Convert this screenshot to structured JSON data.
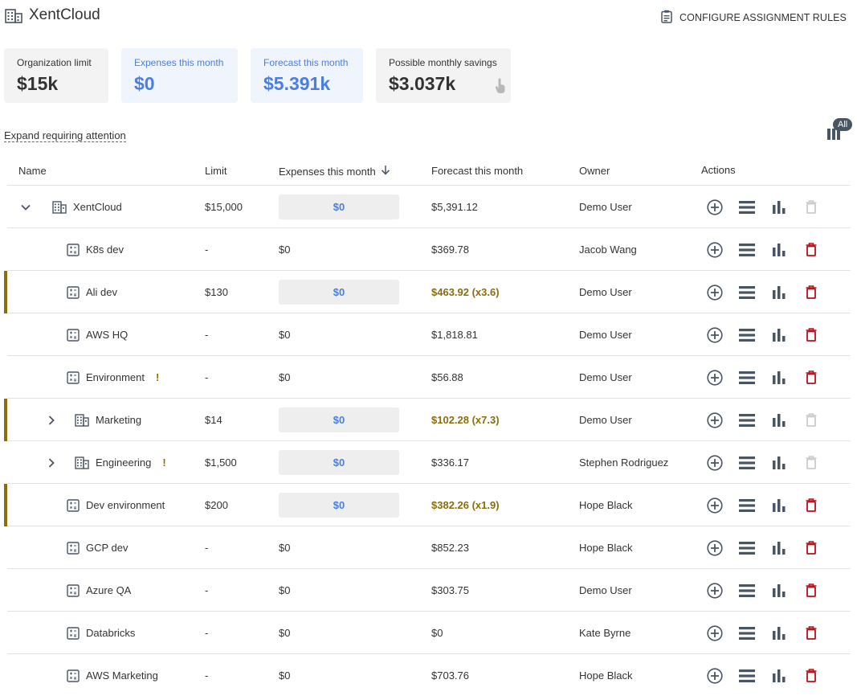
{
  "header": {
    "title": "XentCloud",
    "configure_label": "CONFIGURE ASSIGNMENT RULES"
  },
  "cards": [
    {
      "label": "Organization limit",
      "value": "$15k",
      "style": "grey"
    },
    {
      "label": "Expenses this month",
      "value": "$0",
      "style": "blue"
    },
    {
      "label": "Forecast this month",
      "value": "$5.391k",
      "style": "blue"
    },
    {
      "label": "Possible monthly savings",
      "value": "$3.037k",
      "style": "grey"
    }
  ],
  "expand_link": "Expand requiring attention",
  "column_badge": "All",
  "table": {
    "headers": {
      "name": "Name",
      "limit": "Limit",
      "expenses": "Expenses this month",
      "forecast": "Forecast this month",
      "owner": "Owner",
      "actions": "Actions"
    },
    "rows": [
      {
        "name": "XentCloud",
        "limit": "$15,000",
        "expenses": "$0",
        "forecast": "$5,391.12",
        "owner": "Demo User",
        "type": "org",
        "chevron": "chevron-down",
        "marked": false,
        "exceeded": false,
        "expense_box": true,
        "warn": false,
        "delete_enabled": false
      },
      {
        "name": "K8s dev",
        "limit": "-",
        "expenses": "$0",
        "forecast": "$369.78",
        "owner": "Jacob Wang",
        "type": "pool",
        "chevron": "",
        "marked": false,
        "exceeded": false,
        "expense_box": false,
        "warn": false,
        "delete_enabled": true
      },
      {
        "name": "Ali dev",
        "limit": "$130",
        "expenses": "$0",
        "forecast": "$463.92 (x3.6)",
        "owner": "Demo User",
        "type": "pool",
        "chevron": "",
        "marked": true,
        "exceeded": true,
        "expense_box": true,
        "warn": false,
        "delete_enabled": true
      },
      {
        "name": "AWS HQ",
        "limit": "-",
        "expenses": "$0",
        "forecast": "$1,818.81",
        "owner": "Demo User",
        "type": "pool",
        "chevron": "",
        "marked": false,
        "exceeded": false,
        "expense_box": false,
        "warn": false,
        "delete_enabled": true
      },
      {
        "name": "Environment",
        "limit": "-",
        "expenses": "$0",
        "forecast": "$56.88",
        "owner": "Demo User",
        "type": "pool",
        "chevron": "",
        "marked": false,
        "exceeded": false,
        "expense_box": false,
        "warn": true,
        "delete_enabled": true
      },
      {
        "name": "Marketing",
        "limit": "$14",
        "expenses": "$0",
        "forecast": "$102.28 (x7.3)",
        "owner": "Demo User",
        "type": "org",
        "chevron": "chevron-right",
        "marked": true,
        "exceeded": true,
        "expense_box": true,
        "warn": false,
        "delete_enabled": false
      },
      {
        "name": "Engineering",
        "limit": "$1,500",
        "expenses": "$0",
        "forecast": "$336.17",
        "owner": "Stephen Rodriguez",
        "type": "org",
        "chevron": "chevron-right",
        "marked": false,
        "exceeded": false,
        "expense_box": true,
        "warn": true,
        "delete_enabled": false
      },
      {
        "name": "Dev environment",
        "limit": "$200",
        "expenses": "$0",
        "forecast": "$382.26 (x1.9)",
        "owner": "Hope Black",
        "type": "pool",
        "chevron": "",
        "marked": true,
        "exceeded": true,
        "expense_box": true,
        "warn": false,
        "delete_enabled": true
      },
      {
        "name": "GCP dev",
        "limit": "-",
        "expenses": "$0",
        "forecast": "$852.23",
        "owner": "Hope Black",
        "type": "pool",
        "chevron": "",
        "marked": false,
        "exceeded": false,
        "expense_box": false,
        "warn": false,
        "delete_enabled": true
      },
      {
        "name": "Azure QA",
        "limit": "-",
        "expenses": "$0",
        "forecast": "$303.75",
        "owner": "Demo User",
        "type": "pool",
        "chevron": "",
        "marked": false,
        "exceeded": false,
        "expense_box": false,
        "warn": false,
        "delete_enabled": true
      },
      {
        "name": "Databricks",
        "limit": "-",
        "expenses": "$0",
        "forecast": "$0",
        "owner": "Kate Byrne",
        "type": "pool",
        "chevron": "",
        "marked": false,
        "exceeded": false,
        "expense_box": false,
        "warn": false,
        "delete_enabled": true
      },
      {
        "name": "AWS Marketing",
        "limit": "-",
        "expenses": "$0",
        "forecast": "$703.76",
        "owner": "Hope Black",
        "type": "pool",
        "chevron": "",
        "marked": false,
        "exceeded": false,
        "expense_box": false,
        "warn": false,
        "delete_enabled": true
      }
    ]
  },
  "colors": {
    "accent_blue": "#4a7fe0",
    "warning": "#8a6d0c",
    "delete_red": "#b3121a",
    "icon_grey": "#4a5564"
  }
}
